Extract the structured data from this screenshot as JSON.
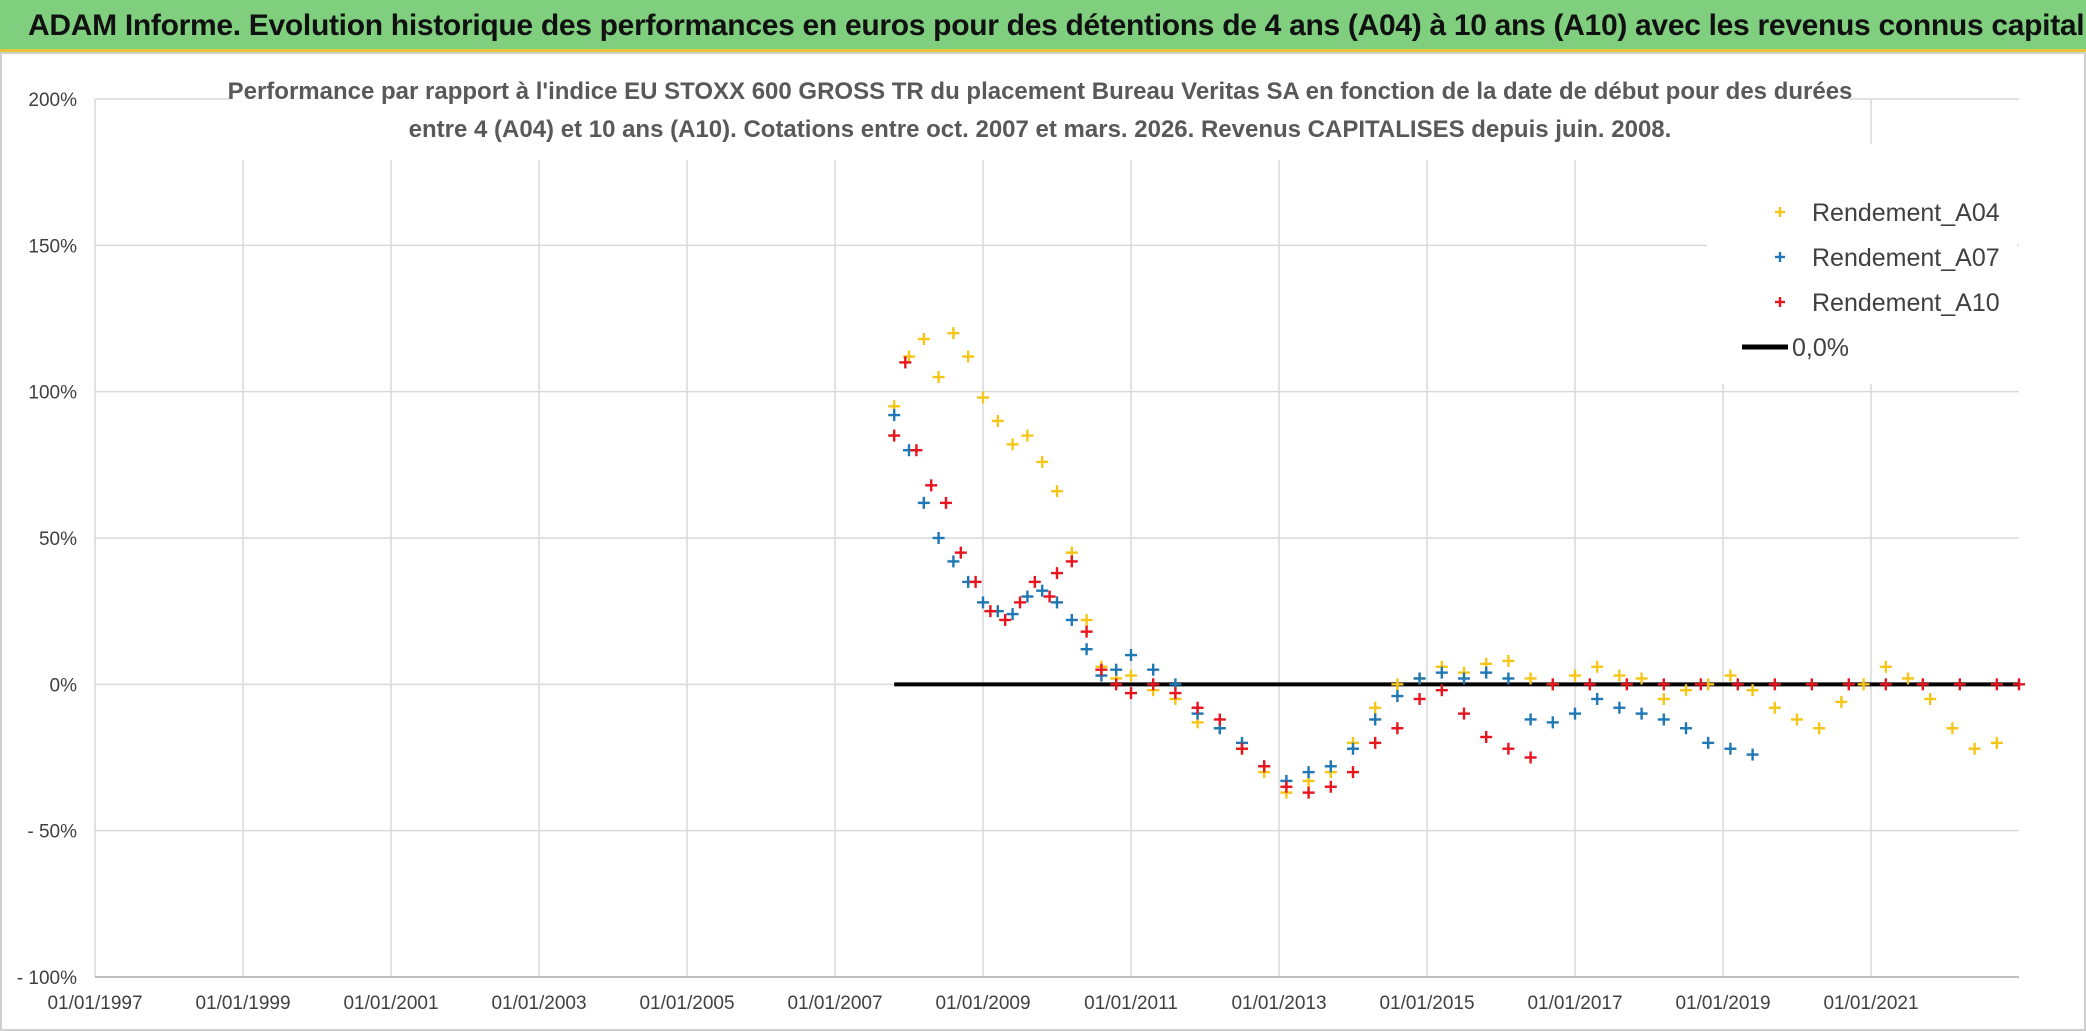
{
  "banner": {
    "title": "ADAM Informe. Evolution historique des performances en euros pour des détentions de 4 ans (A04) à 10 ans (A10) avec les revenus connus capitalisés"
  },
  "colors": {
    "banner_bg": "#7fcf7f",
    "banner_border": "#e8c43a",
    "A04": "#f5c518",
    "A07": "#1f77b4",
    "A10": "#e8141e",
    "zero": "#000000",
    "grid": "#d9d9d9"
  },
  "chart_data": {
    "type": "scatter",
    "title_lines": [
      "Performance par rapport à l'indice EU STOXX 600 GROSS TR  du placement Bureau Veritas SA en fonction de la date de début pour des durées",
      "entre 4 (A04) et 10 ans (A10). Cotations entre oct. 2007 et mars. 2026. Revenus CAPITALISES depuis juin. 2008."
    ],
    "xlabel": "",
    "ylabel": "",
    "xlim": [
      1997.0,
      2023.0
    ],
    "ylim": [
      -100,
      200
    ],
    "x_ticks": [
      1997,
      1999,
      2001,
      2003,
      2005,
      2007,
      2009,
      2011,
      2013,
      2015,
      2017,
      2019,
      2021
    ],
    "x_tick_labels": [
      "01/01/1997",
      "01/01/1999",
      "01/01/2001",
      "01/01/2003",
      "01/01/2005",
      "01/01/2007",
      "01/01/2009",
      "01/01/2011",
      "01/01/2013",
      "01/01/2015",
      "01/01/2017",
      "01/01/2019",
      "01/01/2021"
    ],
    "y_ticks": [
      -100,
      -50,
      0,
      50,
      100,
      150,
      200
    ],
    "y_tick_labels": [
      "- 100%",
      "- 50%",
      "0%",
      "50%",
      "100%",
      "150%",
      "200%"
    ],
    "grid": true,
    "legend_position": "top-right",
    "series": [
      {
        "name": "Rendement_A04",
        "marker": "+",
        "points": [
          [
            2007.8,
            95
          ],
          [
            2008.0,
            112
          ],
          [
            2008.2,
            118
          ],
          [
            2008.4,
            105
          ],
          [
            2008.6,
            120
          ],
          [
            2008.8,
            112
          ],
          [
            2009.0,
            98
          ],
          [
            2009.2,
            90
          ],
          [
            2009.4,
            82
          ],
          [
            2009.6,
            85
          ],
          [
            2009.8,
            76
          ],
          [
            2010.0,
            66
          ],
          [
            2010.2,
            45
          ],
          [
            2010.4,
            22
          ],
          [
            2010.6,
            6
          ],
          [
            2010.8,
            2
          ],
          [
            2011.0,
            3
          ],
          [
            2011.3,
            -2
          ],
          [
            2011.6,
            -5
          ],
          [
            2011.9,
            -13
          ],
          [
            2012.2,
            -15
          ],
          [
            2012.5,
            -22
          ],
          [
            2012.8,
            -30
          ],
          [
            2013.1,
            -37
          ],
          [
            2013.4,
            -33
          ],
          [
            2013.7,
            -30
          ],
          [
            2014.0,
            -20
          ],
          [
            2014.3,
            -8
          ],
          [
            2014.6,
            0
          ],
          [
            2014.9,
            2
          ],
          [
            2015.2,
            6
          ],
          [
            2015.5,
            4
          ],
          [
            2015.8,
            7
          ],
          [
            2016.1,
            8
          ],
          [
            2016.4,
            2
          ],
          [
            2016.7,
            0
          ],
          [
            2017.0,
            3
          ],
          [
            2017.3,
            6
          ],
          [
            2017.6,
            3
          ],
          [
            2017.9,
            2
          ],
          [
            2018.2,
            -5
          ],
          [
            2018.5,
            -2
          ],
          [
            2018.8,
            0
          ],
          [
            2019.1,
            3
          ],
          [
            2019.4,
            -2
          ],
          [
            2019.7,
            -8
          ],
          [
            2020.0,
            -12
          ],
          [
            2020.3,
            -15
          ],
          [
            2020.6,
            -6
          ],
          [
            2020.9,
            0
          ],
          [
            2021.2,
            6
          ],
          [
            2021.5,
            2
          ],
          [
            2021.8,
            -5
          ],
          [
            2022.1,
            -15
          ],
          [
            2022.4,
            -22
          ],
          [
            2022.7,
            -20
          ]
        ]
      },
      {
        "name": "Rendement_A07",
        "marker": "+",
        "points": [
          [
            2007.8,
            92
          ],
          [
            2008.0,
            80
          ],
          [
            2008.2,
            62
          ],
          [
            2008.4,
            50
          ],
          [
            2008.6,
            42
          ],
          [
            2008.8,
            35
          ],
          [
            2009.0,
            28
          ],
          [
            2009.2,
            25
          ],
          [
            2009.4,
            24
          ],
          [
            2009.6,
            30
          ],
          [
            2009.8,
            32
          ],
          [
            2010.0,
            28
          ],
          [
            2010.2,
            22
          ],
          [
            2010.4,
            12
          ],
          [
            2010.6,
            3
          ],
          [
            2010.8,
            5
          ],
          [
            2011.0,
            10
          ],
          [
            2011.3,
            5
          ],
          [
            2011.6,
            0
          ],
          [
            2011.9,
            -10
          ],
          [
            2012.2,
            -15
          ],
          [
            2012.5,
            -20
          ],
          [
            2012.8,
            -28
          ],
          [
            2013.1,
            -33
          ],
          [
            2013.4,
            -30
          ],
          [
            2013.7,
            -28
          ],
          [
            2014.0,
            -22
          ],
          [
            2014.3,
            -12
          ],
          [
            2014.6,
            -4
          ],
          [
            2014.9,
            2
          ],
          [
            2015.2,
            4
          ],
          [
            2015.5,
            2
          ],
          [
            2015.8,
            4
          ],
          [
            2016.1,
            2
          ],
          [
            2016.4,
            -12
          ],
          [
            2016.7,
            -13
          ],
          [
            2017.0,
            -10
          ],
          [
            2017.3,
            -5
          ],
          [
            2017.6,
            -8
          ],
          [
            2017.9,
            -10
          ],
          [
            2018.2,
            -12
          ],
          [
            2018.5,
            -15
          ],
          [
            2018.8,
            -20
          ],
          [
            2019.1,
            -22
          ],
          [
            2019.4,
            -24
          ]
        ]
      },
      {
        "name": "Rendement_A10",
        "marker": "+",
        "points": [
          [
            2007.8,
            85
          ],
          [
            2007.95,
            110
          ],
          [
            2008.1,
            80
          ],
          [
            2008.3,
            68
          ],
          [
            2008.5,
            62
          ],
          [
            2008.7,
            45
          ],
          [
            2008.9,
            35
          ],
          [
            2009.1,
            25
          ],
          [
            2009.3,
            22
          ],
          [
            2009.5,
            28
          ],
          [
            2009.7,
            35
          ],
          [
            2009.9,
            30
          ],
          [
            2010.0,
            38
          ],
          [
            2010.2,
            42
          ],
          [
            2010.4,
            18
          ],
          [
            2010.6,
            5
          ],
          [
            2010.8,
            0
          ],
          [
            2011.0,
            -3
          ],
          [
            2011.3,
            0
          ],
          [
            2011.6,
            -3
          ],
          [
            2011.9,
            -8
          ],
          [
            2012.2,
            -12
          ],
          [
            2012.5,
            -22
          ],
          [
            2012.8,
            -28
          ],
          [
            2013.1,
            -35
          ],
          [
            2013.4,
            -37
          ],
          [
            2013.7,
            -35
          ],
          [
            2014.0,
            -30
          ],
          [
            2014.3,
            -20
          ],
          [
            2014.6,
            -15
          ],
          [
            2014.9,
            -5
          ],
          [
            2015.2,
            -2
          ],
          [
            2015.5,
            -10
          ],
          [
            2015.8,
            -18
          ],
          [
            2016.1,
            -22
          ],
          [
            2016.4,
            -25
          ],
          [
            2016.7,
            0
          ],
          [
            2017.2,
            0
          ],
          [
            2017.7,
            0
          ],
          [
            2018.2,
            0
          ],
          [
            2018.7,
            0
          ],
          [
            2019.2,
            0
          ],
          [
            2019.7,
            0
          ],
          [
            2020.2,
            0
          ],
          [
            2020.7,
            0
          ],
          [
            2021.2,
            0
          ],
          [
            2021.7,
            0
          ],
          [
            2022.2,
            0
          ],
          [
            2022.7,
            0
          ],
          [
            2023.0,
            0
          ]
        ]
      }
    ],
    "reference_line": {
      "name": "0,0%",
      "value": 0,
      "x_start": 2007.8,
      "x_end": 2023.0
    }
  }
}
